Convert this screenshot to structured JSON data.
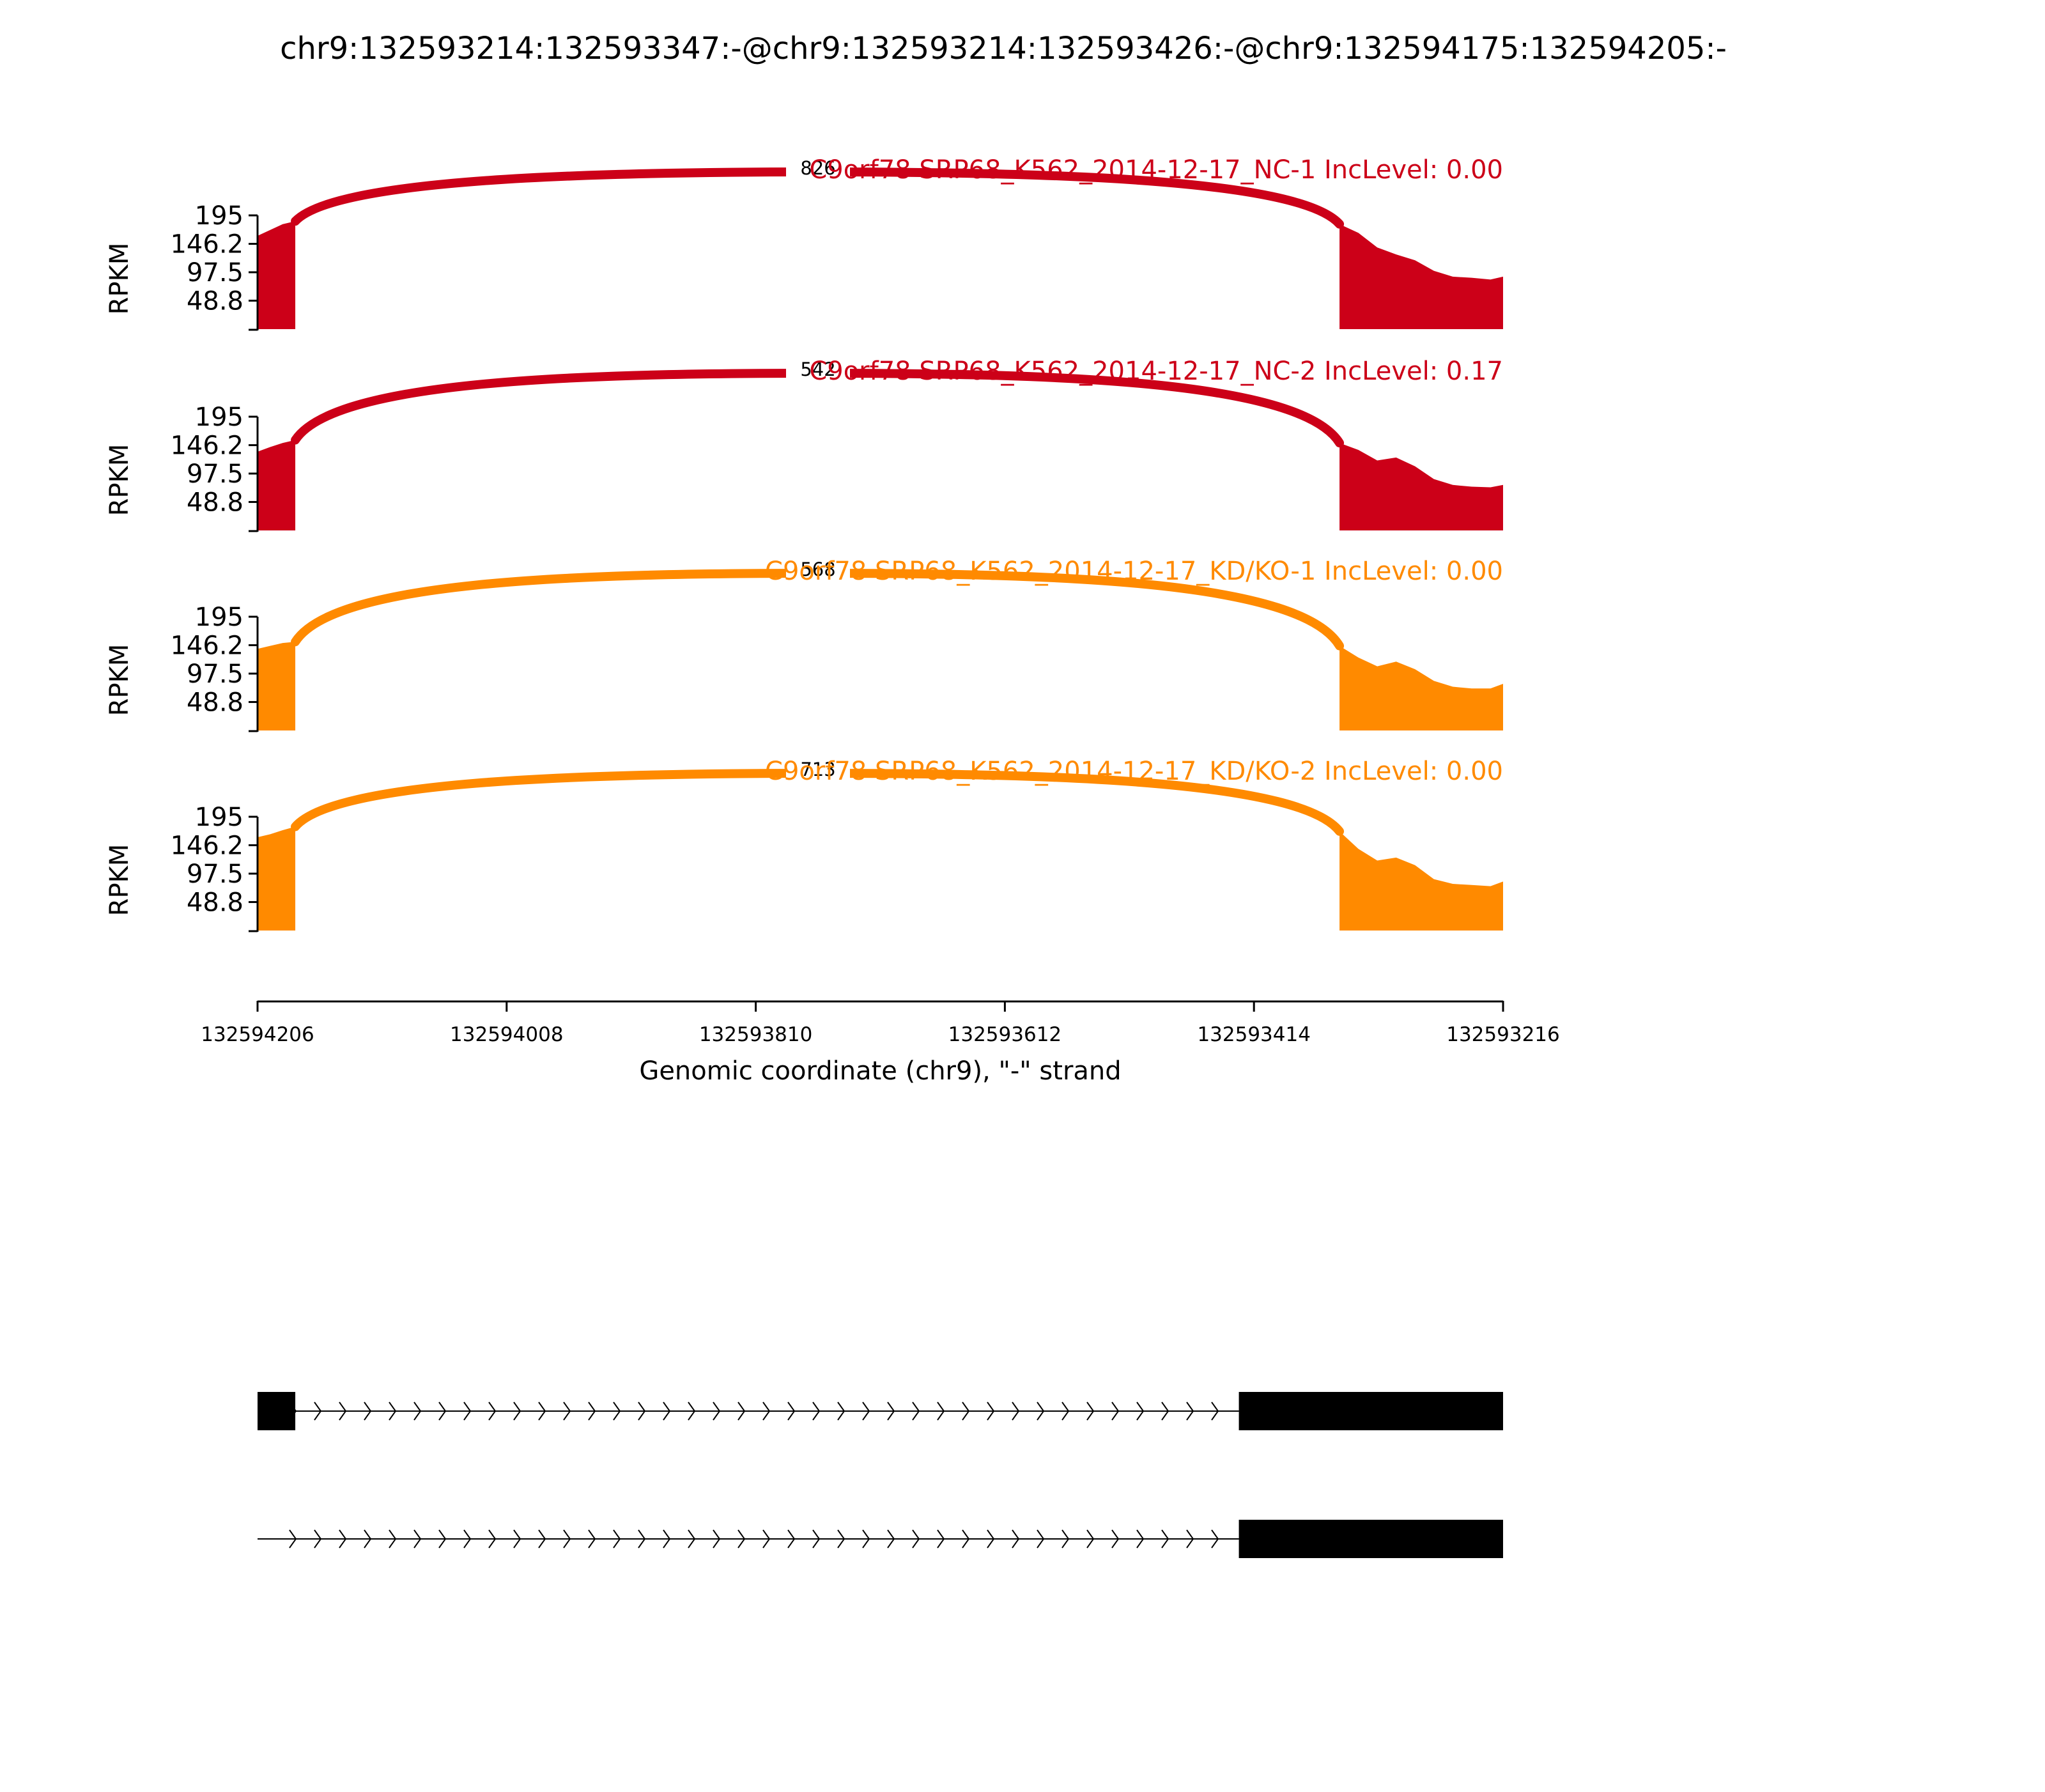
{
  "title": "chr9:132593214:132593347:-@chr9:132593214:132593426:-@chr9:132594175:132594205:-",
  "colors": {
    "nc": "#cc0018",
    "kd": "#ff8a00",
    "axis": "#000000",
    "label_bg": "#ffffff"
  },
  "chart_data": {
    "type": "area",
    "ylabel": "RPKM",
    "xlabel": "Genomic coordinate (chr9), \"-\" strand",
    "x_range": [
      132594206,
      132593216
    ],
    "x_ticks": [
      "132594206",
      "132594008",
      "132593810",
      "132593612",
      "132593414",
      "132593216"
    ],
    "y_ticks": [
      "195",
      "146.2",
      "97.5",
      "48.8"
    ],
    "ylim": [
      0,
      195
    ],
    "tracks": [
      {
        "label": "C9orf78 SRP68_K562_2014-12-17_NC-1 IncLevel: 0.00",
        "group": "nc",
        "junction_count": "826",
        "coverage": [
          {
            "x": 132594206,
            "y": 160
          },
          {
            "x": 132594196,
            "y": 170
          },
          {
            "x": 132594186,
            "y": 180
          },
          {
            "x": 132594176,
            "y": 185
          },
          {
            "x": 132593346,
            "y": 180
          },
          {
            "x": 132593331,
            "y": 165
          },
          {
            "x": 132593316,
            "y": 140
          },
          {
            "x": 132593301,
            "y": 128
          },
          {
            "x": 132593286,
            "y": 118
          },
          {
            "x": 132593271,
            "y": 100
          },
          {
            "x": 132593256,
            "y": 90
          },
          {
            "x": 132593241,
            "y": 88
          },
          {
            "x": 132593226,
            "y": 85
          },
          {
            "x": 132593216,
            "y": 90
          }
        ]
      },
      {
        "label": "C9orf78 SRP68_K562_2014-12-17_NC-2 IncLevel: 0.17",
        "group": "nc",
        "junction_count": "542",
        "coverage": [
          {
            "x": 132594206,
            "y": 135
          },
          {
            "x": 132594196,
            "y": 143
          },
          {
            "x": 132594186,
            "y": 150
          },
          {
            "x": 132594176,
            "y": 155
          },
          {
            "x": 132593346,
            "y": 150
          },
          {
            "x": 132593331,
            "y": 138
          },
          {
            "x": 132593316,
            "y": 120
          },
          {
            "x": 132593301,
            "y": 125
          },
          {
            "x": 132593286,
            "y": 110
          },
          {
            "x": 132593271,
            "y": 88
          },
          {
            "x": 132593256,
            "y": 78
          },
          {
            "x": 132593241,
            "y": 75
          },
          {
            "x": 132593226,
            "y": 74
          },
          {
            "x": 132593216,
            "y": 78
          }
        ]
      },
      {
        "label": "C9orf78 SRP68_K562_2014-12-17_KD/KO-1 IncLevel: 0.00",
        "group": "kd",
        "junction_count": "568",
        "coverage": [
          {
            "x": 132594206,
            "y": 140
          },
          {
            "x": 132594196,
            "y": 145
          },
          {
            "x": 132594186,
            "y": 150
          },
          {
            "x": 132594176,
            "y": 152
          },
          {
            "x": 132593346,
            "y": 145
          },
          {
            "x": 132593331,
            "y": 125
          },
          {
            "x": 132593316,
            "y": 110
          },
          {
            "x": 132593301,
            "y": 118
          },
          {
            "x": 132593286,
            "y": 105
          },
          {
            "x": 132593271,
            "y": 85
          },
          {
            "x": 132593256,
            "y": 75
          },
          {
            "x": 132593241,
            "y": 72
          },
          {
            "x": 132593226,
            "y": 72
          },
          {
            "x": 132593216,
            "y": 80
          }
        ]
      },
      {
        "label": "C9orf78 SRP68_K562_2014-12-17_KD/KO-2 IncLevel: 0.00",
        "group": "kd",
        "junction_count": "713",
        "coverage": [
          {
            "x": 132594206,
            "y": 160
          },
          {
            "x": 132594196,
            "y": 165
          },
          {
            "x": 132594186,
            "y": 172
          },
          {
            "x": 132594176,
            "y": 178
          },
          {
            "x": 132593346,
            "y": 170
          },
          {
            "x": 132593331,
            "y": 140
          },
          {
            "x": 132593316,
            "y": 120
          },
          {
            "x": 132593301,
            "y": 125
          },
          {
            "x": 132593286,
            "y": 112
          },
          {
            "x": 132593271,
            "y": 88
          },
          {
            "x": 132593256,
            "y": 80
          },
          {
            "x": 132593241,
            "y": 78
          },
          {
            "x": 132593226,
            "y": 76
          },
          {
            "x": 132593216,
            "y": 84
          }
        ]
      }
    ],
    "gene_models": [
      {
        "exons": [
          [
            132594206,
            132594176
          ],
          [
            132593426,
            132593216
          ]
        ]
      },
      {
        "exons": [
          [
            132593426,
            132593216
          ]
        ]
      }
    ]
  }
}
